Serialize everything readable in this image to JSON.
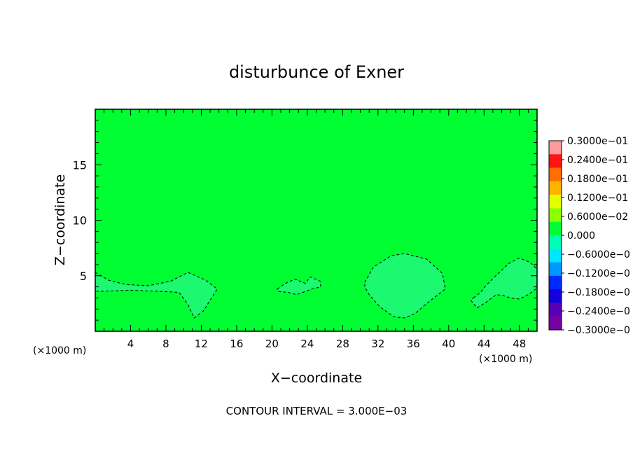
{
  "chart_data": {
    "type": "heatmap",
    "title": "disturbunce of Exner",
    "xlabel": "X−coordinate",
    "ylabel": "Z−coordinate",
    "x_unit_label": "(×1000 m)",
    "x_unit_label_right": "(×1000 m)",
    "xlim": [
      0,
      50
    ],
    "ylim": [
      0,
      20
    ],
    "x_ticks": [
      4,
      8,
      12,
      16,
      20,
      24,
      28,
      32,
      36,
      40,
      44,
      48
    ],
    "y_ticks": [
      5,
      10,
      15
    ],
    "colorbar": {
      "vmin": -0.03,
      "vmax": 0.03,
      "labels": [
        "0.3000e−01",
        "0.2400e−01",
        "0.1800e−01",
        "0.1200e−01",
        "0.6000e−02",
        "0.000",
        "−0.6000e−0",
        "−0.1200e−0",
        "−0.1800e−0",
        "−0.2400e−0",
        "−0.3000e−0"
      ],
      "colors": [
        "#ff9b9b",
        "#ff1414",
        "#ff6e00",
        "#ffb400",
        "#e6ff00",
        "#8cff00",
        "#00ff32",
        "#00ffb4",
        "#00e6ff",
        "#0096ff",
        "#0028ff",
        "#1400dc",
        "#5a00b4",
        "#7800a0"
      ]
    },
    "background_color": "#00ff32",
    "anomaly_color": "#1cf870",
    "regions": [
      {
        "kind": "negative",
        "level": -0.003,
        "points": [
          [
            0,
            5.3
          ],
          [
            1.5,
            4.6
          ],
          [
            3.5,
            4.2
          ],
          [
            6,
            4.1
          ],
          [
            8.5,
            4.5
          ],
          [
            10.5,
            5.3
          ],
          [
            12.5,
            4.6
          ],
          [
            13.8,
            3.8
          ],
          [
            12.2,
            1.8
          ],
          [
            11.2,
            1.2
          ],
          [
            10.5,
            2.4
          ],
          [
            9.5,
            3.5
          ],
          [
            7,
            3.6
          ],
          [
            4,
            3.7
          ],
          [
            1,
            3.6
          ],
          [
            0,
            3.6
          ]
        ]
      },
      {
        "kind": "negative",
        "level": -0.003,
        "points": [
          [
            20.6,
            3.8
          ],
          [
            21.5,
            4.3
          ],
          [
            22.6,
            4.7
          ],
          [
            23.8,
            4.3
          ],
          [
            24.3,
            4.9
          ],
          [
            25.5,
            4.5
          ],
          [
            25.5,
            4.0
          ],
          [
            24.5,
            3.8
          ],
          [
            22.8,
            3.3
          ],
          [
            21.8,
            3.5
          ],
          [
            20.6,
            3.6
          ]
        ]
      },
      {
        "kind": "negative",
        "level": -0.003,
        "points": [
          [
            30.5,
            4.4
          ],
          [
            31.5,
            5.8
          ],
          [
            33.5,
            6.8
          ],
          [
            35,
            7.0
          ],
          [
            37.5,
            6.5
          ],
          [
            39.3,
            5.2
          ],
          [
            39.6,
            3.8
          ],
          [
            37.5,
            2.5
          ],
          [
            36.2,
            1.6
          ],
          [
            35,
            1.2
          ],
          [
            33.8,
            1.3
          ],
          [
            32.2,
            2.2
          ],
          [
            31.0,
            3.3
          ],
          [
            30.5,
            4.0
          ]
        ]
      },
      {
        "kind": "negative",
        "level": -0.003,
        "points": [
          [
            42.8,
            3.0
          ],
          [
            43.6,
            3.5
          ],
          [
            44.2,
            4.1
          ],
          [
            45.2,
            4.9
          ],
          [
            46.8,
            6.1
          ],
          [
            48,
            6.6
          ],
          [
            49.2,
            6.2
          ],
          [
            50,
            5.6
          ],
          [
            50,
            3.9
          ],
          [
            49,
            3.3
          ],
          [
            48,
            2.9
          ],
          [
            47,
            3.0
          ],
          [
            46.2,
            3.2
          ],
          [
            45.4,
            3.3
          ],
          [
            44.2,
            2.6
          ],
          [
            43.2,
            2.1
          ],
          [
            42.5,
            2.8
          ]
        ]
      }
    ]
  },
  "footer": {
    "contour_interval": "CONTOUR INTERVAL = 3.000E−03"
  }
}
